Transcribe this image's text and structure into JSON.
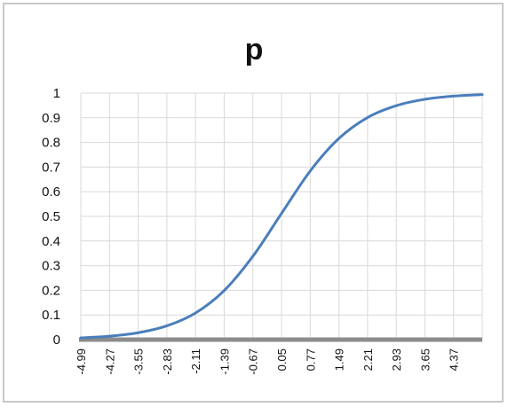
{
  "chart_data": {
    "type": "line",
    "title": "p",
    "xlabel": "",
    "ylabel": "",
    "ylim": [
      0,
      1
    ],
    "yticks": [
      "0",
      "0.1",
      "0.2",
      "0.3",
      "0.4",
      "0.5",
      "0.6",
      "0.7",
      "0.8",
      "0.9",
      "1"
    ],
    "xticks": [
      "-4.99",
      "-4.27",
      "-3.55",
      "-2.83",
      "-2.11",
      "-1.39",
      "-0.67",
      "0.05",
      "0.77",
      "1.49",
      "2.21",
      "2.93",
      "3.65",
      "4.37"
    ],
    "xlim": [
      -4.99,
      5.09
    ],
    "grid": true,
    "legend": "none",
    "series": [
      {
        "color": "#4a7ebb",
        "x": [
          -4.99,
          -4.27,
          -3.55,
          -2.83,
          -2.11,
          -1.39,
          -0.67,
          0.05,
          0.77,
          1.49,
          2.21,
          2.93,
          3.65,
          4.37,
          5.09
        ],
        "y": [
          0.007,
          0.014,
          0.028,
          0.056,
          0.108,
          0.199,
          0.338,
          0.512,
          0.684,
          0.816,
          0.901,
          0.949,
          0.975,
          0.988,
          0.994
        ]
      }
    ],
    "colors": {
      "line": "#4a7ebb",
      "grid": "#d9d9d9",
      "baseline": "#8c8c8c"
    }
  }
}
